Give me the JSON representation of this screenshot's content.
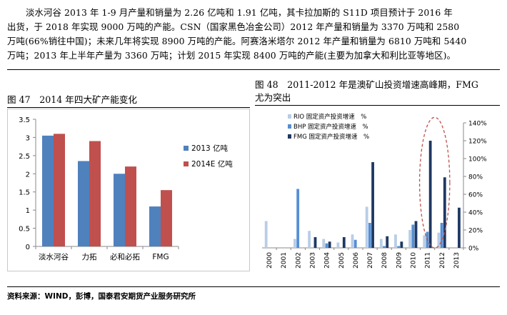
{
  "intro": {
    "lines": [
      "淡水河谷 2013 年 1-9 月产量和销量为 2.26 亿吨和 1.91 亿吨，其卡拉加斯的 S11D 项目预计于 2016 年",
      "出货，于 2018 年实现 9000 万吨的产能。CSN（国家黑色冶金公司）2012 年产量和销量为 3370 万吨和 2580",
      "万吨(66%销往中国)；未来几年将实现 8900 万吨的产能。阿赛洛米塔尔 2012 年产量和销量为 6810 万吨和 5440",
      "万吨；2013 年上半年产量为 3360 万吨；计划 2015 年实现 8400 万吨的产能(主要为加拿大和利比亚等地区)。"
    ]
  },
  "figure47": {
    "title": "图 47　2014 年四大矿产能变化",
    "chart_data": {
      "type": "bar",
      "categories": [
        "淡水河谷",
        "力拓",
        "必和必拓",
        "FMG"
      ],
      "series": [
        {
          "name": "2013 亿吨",
          "color": "#4F81BD",
          "values": [
            3.05,
            2.35,
            2.0,
            1.1
          ]
        },
        {
          "name": "2014E 亿吨",
          "color": "#C0504D",
          "values": [
            3.1,
            2.9,
            2.2,
            1.55
          ]
        }
      ],
      "ylim": [
        0,
        3.5
      ],
      "yticks": [
        "0",
        "0.5",
        "1",
        "1.5",
        "2",
        "2.5",
        "3",
        "3.5"
      ],
      "grid": false,
      "legend": "right"
    }
  },
  "figure48": {
    "title_line1": "图 48　2011-2012 年是澳矿山投资增速高峰期，FMG",
    "title_line2": "尤为突出",
    "chart_data": {
      "type": "bar",
      "categories": [
        "2000",
        "2001",
        "2002",
        "2003",
        "2004",
        "2005",
        "2006",
        "2007",
        "2008",
        "2009",
        "2010",
        "2011",
        "2012",
        "2013"
      ],
      "series": [
        {
          "name": "RIO 固定资产投资增速　%",
          "color": "#B9CDE5",
          "values": [
            30,
            0,
            10,
            19,
            10,
            6,
            15,
            46,
            10,
            15,
            20,
            14,
            17,
            0
          ]
        },
        {
          "name": "BHP 固定资产投资增速　%",
          "color": "#558ED5",
          "values": [
            0,
            0,
            66,
            0,
            5,
            0,
            9,
            28,
            2,
            2,
            26,
            18,
            28,
            0
          ]
        },
        {
          "name": "FMG 固定资产投资增速　%",
          "color": "#1F3864",
          "values": [
            0,
            0,
            0,
            12,
            7,
            12,
            0,
            96,
            13,
            7,
            30,
            120,
            79,
            45
          ]
        }
      ],
      "ylim": [
        0,
        140
      ],
      "yticks": [
        "0%",
        "20%",
        "40%",
        "60%",
        "80%",
        "100%",
        "120%",
        "140%"
      ],
      "grid": false,
      "legend": "top-left",
      "annotation": "dashed ellipse around 2011-2012"
    }
  },
  "source": "资料来源：WIND，彭博，国泰君安期货产业服务研究所"
}
